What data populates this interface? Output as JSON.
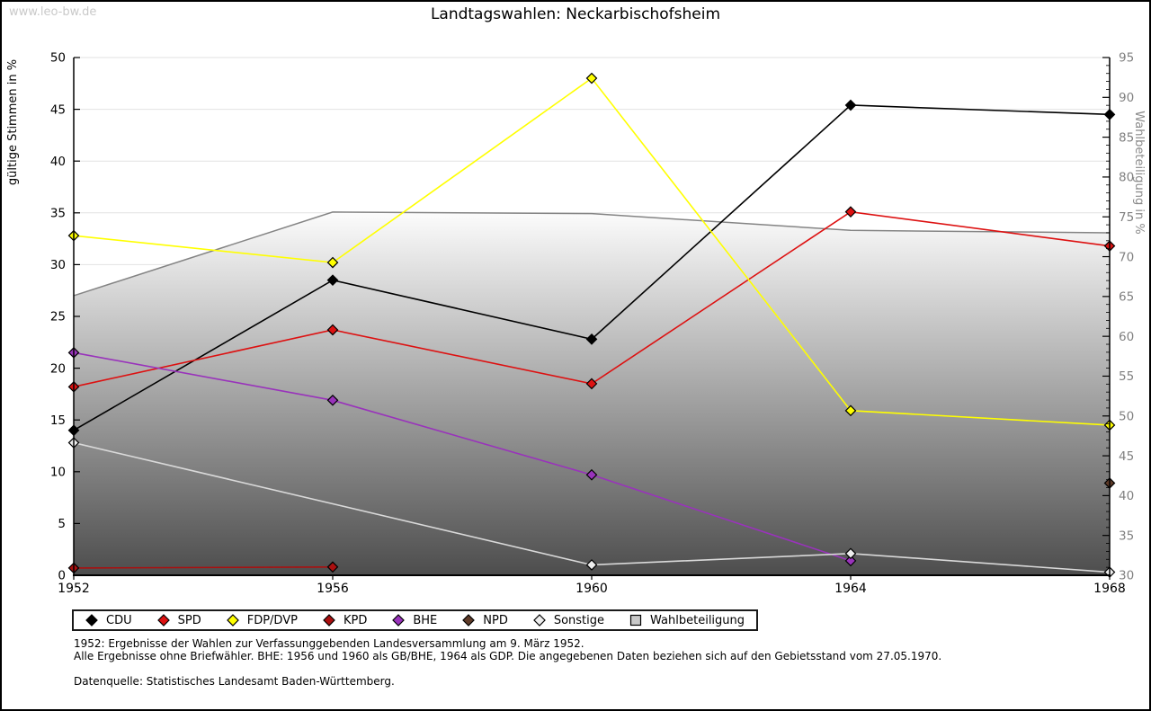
{
  "watermark": "www.leo-bw.de",
  "title": "Landtagswahlen: Neckarbischofsheim",
  "chart_data": {
    "type": "line",
    "title": "Landtagswahlen: Neckarbischofsheim",
    "x": [
      1952,
      1956,
      1960,
      1964,
      1968
    ],
    "x_tick_labels": [
      "1952",
      "1956",
      "1960",
      "1964",
      "1968"
    ],
    "left_axis": {
      "label": "gültige Stimmen in %",
      "min": 0,
      "max": 50,
      "tick_step": 5
    },
    "right_axis": {
      "label": "Wahlbeteiligung in %",
      "min": 30,
      "max": 95,
      "tick_step": 5,
      "minor_tick_step": 1
    },
    "grid": true,
    "legend_position": "bottom",
    "series": [
      {
        "name": "CDU",
        "axis": "left",
        "marker": "diamond",
        "color": "#000000",
        "values": [
          14.0,
          28.5,
          22.8,
          45.4,
          44.5
        ]
      },
      {
        "name": "SPD",
        "axis": "left",
        "marker": "diamond",
        "color": "#dd1111",
        "values": [
          18.2,
          23.7,
          18.5,
          35.1,
          31.8
        ]
      },
      {
        "name": "FDP/DVP",
        "axis": "left",
        "marker": "diamond",
        "color": "#ffff00",
        "values": [
          32.8,
          30.2,
          48.0,
          15.9,
          14.5
        ]
      },
      {
        "name": "KPD",
        "axis": "left",
        "marker": "diamond",
        "color": "#aa0f0f",
        "values": [
          0.7,
          0.8,
          null,
          null,
          null
        ]
      },
      {
        "name": "BHE",
        "axis": "left",
        "marker": "diamond",
        "color": "#9933bb",
        "values": [
          21.5,
          16.9,
          9.7,
          1.4,
          null
        ]
      },
      {
        "name": "NPD",
        "axis": "left",
        "marker": "diamond",
        "color": "#5f3b28",
        "values": [
          null,
          null,
          null,
          null,
          8.9
        ]
      },
      {
        "name": "Sonstige",
        "axis": "left",
        "marker": "diamond",
        "color": "#d9d9d9",
        "marker_fill": "#eeeeee",
        "values": [
          12.8,
          null,
          1.0,
          2.1,
          0.3
        ]
      },
      {
        "name": "Wahlbeteiligung",
        "axis": "right",
        "marker": "square",
        "color": "#848484",
        "area": true,
        "area_fill_top": "#fcfcfc",
        "area_fill_bottom": "#4d4d4d",
        "legend_fill": "#c8c8c8",
        "values": [
          65.1,
          75.6,
          75.4,
          73.3,
          73.0
        ]
      }
    ]
  },
  "footnotes": {
    "line1": "1952: Ergebnisse der Wahlen zur Verfassunggebenden Landesversammlung am 9. März 1952.",
    "line2": "Alle Ergebnisse ohne Briefwähler. BHE: 1956 und 1960 als GB/BHE, 1964 als GDP. Die angegebenen Daten beziehen sich auf den Gebietsstand vom 27.05.1970.",
    "source": "Datenquelle: Statistisches Landesamt Baden-Württemberg."
  }
}
